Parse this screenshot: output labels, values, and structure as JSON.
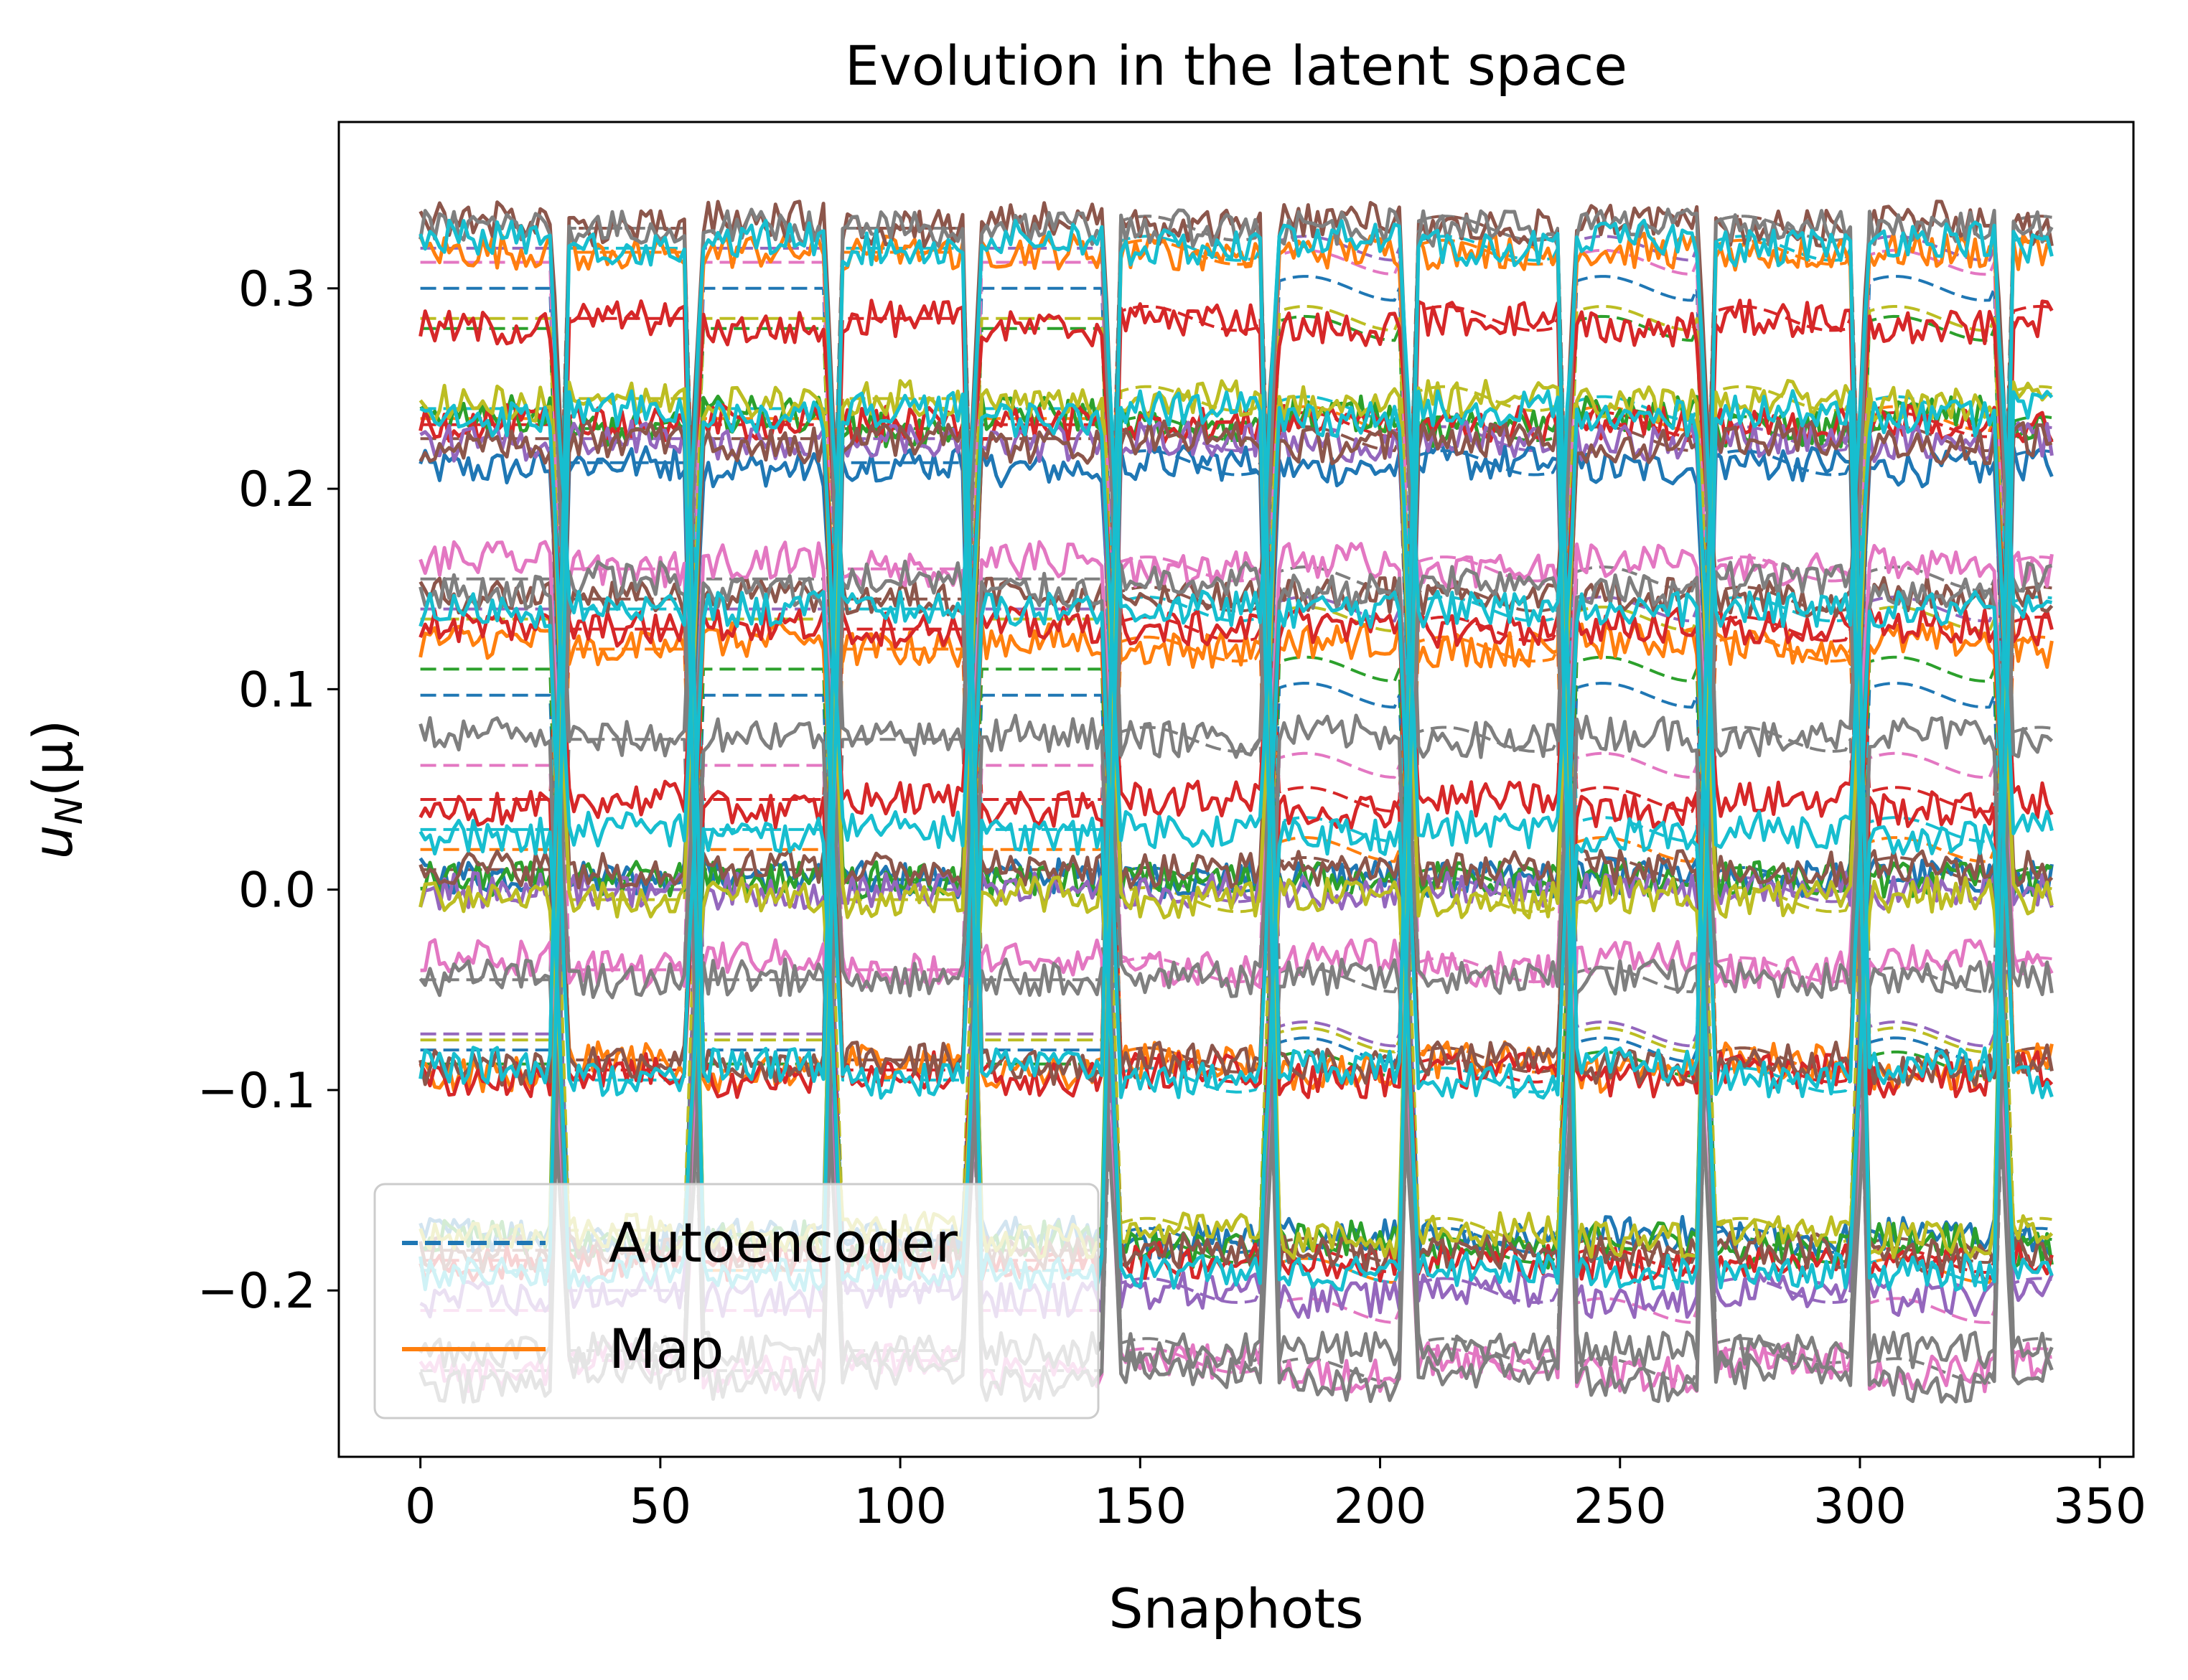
{
  "chart_data": {
    "type": "line",
    "title": "Evolution in the latent space",
    "xlabel": "Snaphots",
    "ylabel_main": "u",
    "ylabel_sub": "N",
    "ylabel_arg": "(μ)",
    "xlim": [
      -17,
      357
    ],
    "ylim": [
      -0.283,
      0.383
    ],
    "x_ticks": [
      0,
      50,
      100,
      150,
      200,
      250,
      300,
      350
    ],
    "x_tick_labels": [
      "0",
      "50",
      "100",
      "150",
      "200",
      "250",
      "300",
      "350"
    ],
    "y_ticks": [
      -0.2,
      -0.1,
      0.0,
      0.1,
      0.2,
      0.3
    ],
    "y_tick_labels": [
      "−0.2",
      "−0.1",
      "0.0",
      "0.1",
      "0.2",
      "0.3"
    ],
    "grid": false,
    "legend_position": "bottom-left",
    "colors": [
      "#1f77b4",
      "#ff7f0e",
      "#2ca02c",
      "#d62728",
      "#9467bd",
      "#8c564b",
      "#e377c2",
      "#7f7f7f",
      "#bcbd22",
      "#17becf"
    ],
    "x_range": [
      0,
      340
    ],
    "block_starts": [
      0,
      27,
      55,
      84,
      113,
      142,
      175,
      204,
      237,
      266,
      298,
      328
    ],
    "series": [
      {
        "name": "Autoencoder",
        "style": "dashed",
        "color": "#1f77b4"
      },
      {
        "name": "Map",
        "style": "solid",
        "color": "#ff7f0e"
      }
    ],
    "latent_levels": {
      "high": [
        0.3,
        0.318,
        0.28,
        0.285,
        0.32,
        0.33,
        0.313,
        0.33,
        0.285,
        0.32
      ],
      "mid": [
        0.213,
        0.235,
        0.23,
        0.232,
        0.225,
        0.225,
        0.16,
        0.155,
        0.245,
        0.24
      ],
      "low": [
        0.097,
        0.12,
        0.11,
        0.13,
        0.14,
        0.145,
        0.062,
        0.075,
        0.135,
        0.14
      ],
      "near0": [
        0.005,
        0.02,
        0.005,
        0.045,
        0.0,
        0.01,
        -0.04,
        -0.045,
        -0.005,
        0.03
      ],
      "neg": [
        -0.08,
        -0.085,
        -0.087,
        -0.09,
        -0.072,
        -0.085,
        -0.21,
        -0.23,
        -0.075,
        -0.095
      ],
      "deep": [
        -0.175,
        -0.19,
        -0.18,
        -0.185,
        -0.2,
        -0.18,
        -0.235,
        -0.24,
        -0.17,
        -0.19
      ]
    }
  },
  "legend": {
    "autoencoder_label": "Autoencoder",
    "map_label": "Map"
  }
}
